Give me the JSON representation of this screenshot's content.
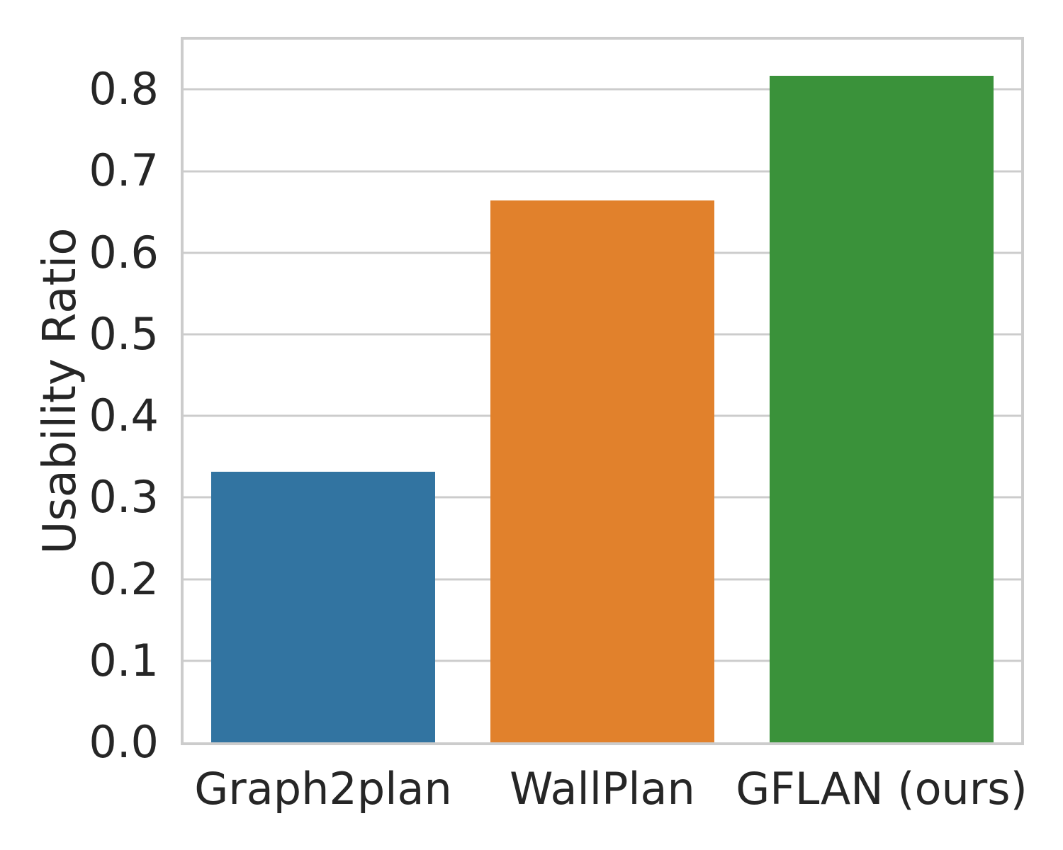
{
  "chart_data": {
    "type": "bar",
    "title": "",
    "xlabel": "",
    "ylabel": "Usability Ratio",
    "categories": [
      "Graph2plan",
      "WallPlan",
      "GFLAN (ours)"
    ],
    "values": [
      0.332,
      0.664,
      0.817
    ],
    "bar_colors": [
      "#3274a1",
      "#e1812c",
      "#3a923a"
    ],
    "bar_rel_width": 0.8,
    "ylim": [
      0,
      0.861
    ],
    "yticks": [
      0.0,
      0.1,
      0.2,
      0.3,
      0.4,
      0.5,
      0.6,
      0.7,
      0.8
    ],
    "ytick_labels": [
      "0.0",
      "0.1",
      "0.2",
      "0.3",
      "0.4",
      "0.5",
      "0.6",
      "0.7",
      "0.8"
    ],
    "grid": "horizontal-major-only",
    "legend": "none"
  },
  "style": {
    "background": "#ffffff",
    "text_color": "#262626",
    "grid_color": "#cccccc",
    "spine_color": "#cccccc"
  }
}
